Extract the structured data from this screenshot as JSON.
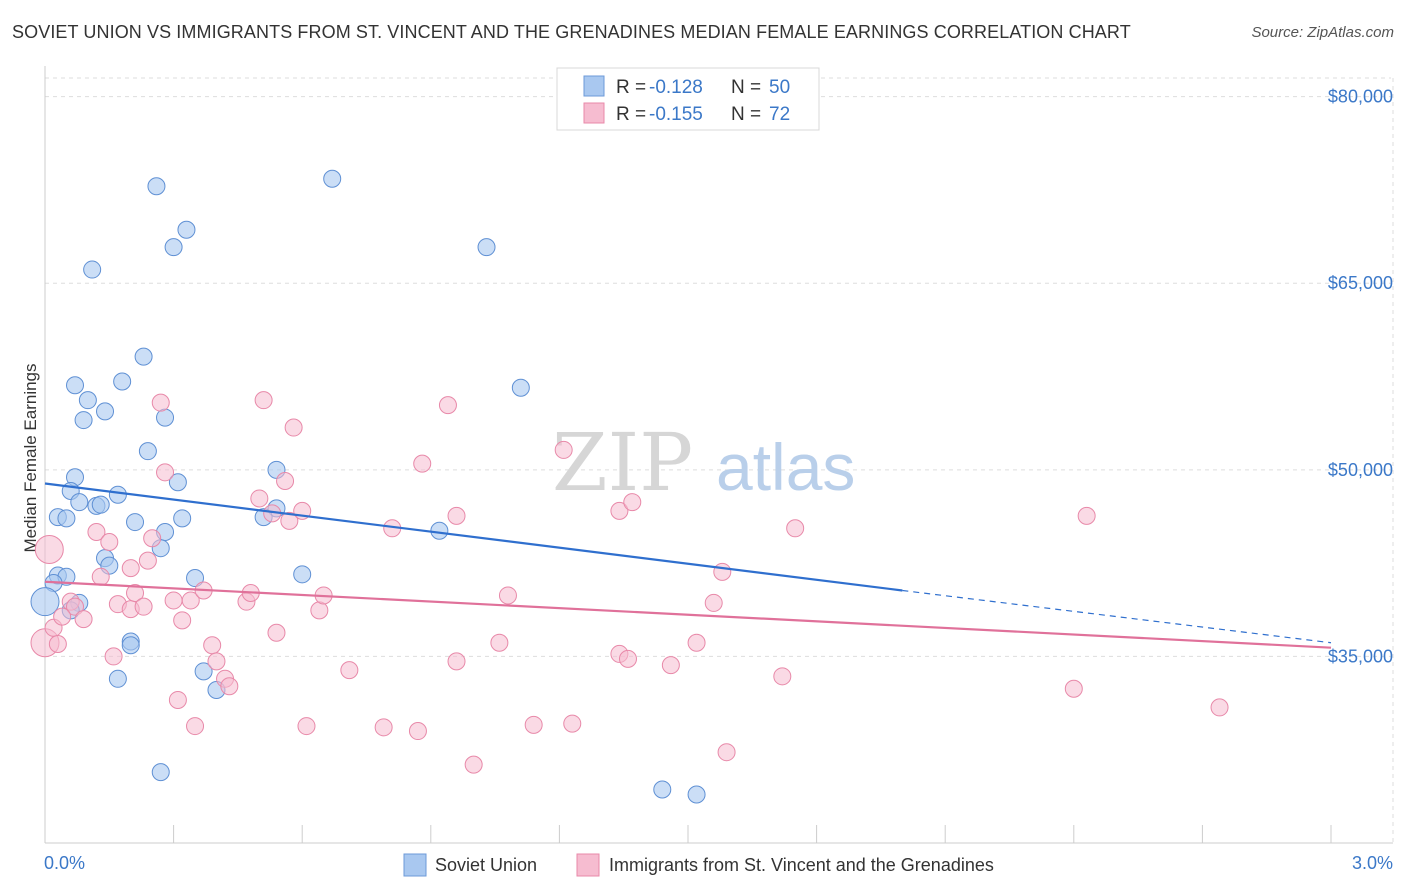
{
  "title": "SOVIET UNION VS IMMIGRANTS FROM ST. VINCENT AND THE GRENADINES MEDIAN FEMALE EARNINGS CORRELATION CHART",
  "source": "Source: ZipAtlas.com",
  "watermark": {
    "zip": "ZIP",
    "atlas": "atlas"
  },
  "colors": {
    "blue": "#3b78c8",
    "blue_fill": "#a9c8f0",
    "blue_line": "#2f6fce",
    "pink_fill": "#f6bcd0",
    "pink_stroke": "#e889a9",
    "pink_line": "#e0719a",
    "grid": "#dddddd"
  },
  "legend": {
    "rows": [
      {
        "r_label": "R =",
        "r_value": "-0.128",
        "n_label": "N =",
        "n_value": "50"
      },
      {
        "r_label": "R =",
        "r_value": "-0.155",
        "n_label": "N =",
        "n_value": "72"
      }
    ]
  },
  "bottom_legend": [
    "Soviet Union",
    "Immigrants from St. Vincent and the Grenadines"
  ],
  "chart_data": {
    "type": "scatter",
    "title": "SOVIET UNION VS IMMIGRANTS FROM ST. VINCENT AND THE GRENADINES MEDIAN FEMALE EARNINGS CORRELATION CHART",
    "xlabel": "",
    "ylabel": "Median Female Earnings",
    "xlim": [
      0,
      3.0
    ],
    "ylim": [
      20000,
      81500
    ],
    "x_tick_labels": [
      "0.0%",
      "3.0%"
    ],
    "y_ticks": [
      35000,
      50000,
      65000,
      80000
    ],
    "y_tick_labels": [
      "$35,000",
      "$50,000",
      "$65,000",
      "$80,000"
    ],
    "grid": true,
    "legend_position": "top-center",
    "series": [
      {
        "name": "Soviet Union",
        "color": "#a9c8f0",
        "r": -0.128,
        "n": 50,
        "trend": {
          "x": [
            0.0,
            2.0
          ],
          "y": [
            48900,
            40300
          ],
          "dashed_to": [
            3.0,
            36100
          ]
        },
        "points": [
          [
            0.26,
            72800
          ],
          [
            0.67,
            73400
          ],
          [
            0.33,
            69300
          ],
          [
            0.3,
            67900
          ],
          [
            1.03,
            67900
          ],
          [
            0.11,
            66100
          ],
          [
            0.23,
            59100
          ],
          [
            0.18,
            57100
          ],
          [
            0.07,
            56800
          ],
          [
            1.11,
            56600
          ],
          [
            0.1,
            55600
          ],
          [
            0.14,
            54700
          ],
          [
            0.28,
            54200
          ],
          [
            0.09,
            54000
          ],
          [
            0.24,
            51500
          ],
          [
            0.54,
            50000
          ],
          [
            0.07,
            49400
          ],
          [
            0.31,
            49000
          ],
          [
            0.06,
            48300
          ],
          [
            0.17,
            48000
          ],
          [
            0.08,
            47400
          ],
          [
            0.12,
            47100
          ],
          [
            0.13,
            47200
          ],
          [
            0.54,
            46900
          ],
          [
            0.03,
            46200
          ],
          [
            0.05,
            46100
          ],
          [
            0.32,
            46100
          ],
          [
            0.51,
            46200
          ],
          [
            0.21,
            45800
          ],
          [
            0.28,
            45000
          ],
          [
            0.92,
            45100
          ],
          [
            0.27,
            43700
          ],
          [
            0.14,
            42900
          ],
          [
            0.15,
            42300
          ],
          [
            0.6,
            41600
          ],
          [
            0.03,
            41500
          ],
          [
            0.05,
            41400
          ],
          [
            0.35,
            41300
          ],
          [
            0.02,
            40900
          ],
          [
            0.0,
            39400
          ],
          [
            0.08,
            39300
          ],
          [
            0.2,
            36200
          ],
          [
            0.2,
            35900
          ],
          [
            0.37,
            33800
          ],
          [
            0.17,
            33200
          ],
          [
            0.4,
            32300
          ],
          [
            0.27,
            25700
          ],
          [
            1.44,
            24300
          ],
          [
            1.52,
            23900
          ],
          [
            0.06,
            38700
          ]
        ]
      },
      {
        "name": "Immigrants from St. Vincent and the Grenadines",
        "color": "#f6bcd0",
        "r": -0.155,
        "n": 72,
        "trend": {
          "x": [
            0.0,
            3.0
          ],
          "y": [
            41000,
            35700
          ]
        },
        "points": [
          [
            0.0,
            36100
          ],
          [
            0.01,
            43600
          ],
          [
            0.02,
            37300
          ],
          [
            0.03,
            36000
          ],
          [
            0.06,
            39400
          ],
          [
            0.07,
            39000
          ],
          [
            0.09,
            38000
          ],
          [
            0.12,
            45000
          ],
          [
            0.13,
            41400
          ],
          [
            0.15,
            44200
          ],
          [
            0.16,
            35000
          ],
          [
            0.17,
            39200
          ],
          [
            0.2,
            38800
          ],
          [
            0.2,
            42100
          ],
          [
            0.21,
            40100
          ],
          [
            0.23,
            39000
          ],
          [
            0.24,
            42700
          ],
          [
            0.25,
            44500
          ],
          [
            0.27,
            55400
          ],
          [
            0.28,
            49800
          ],
          [
            0.3,
            39500
          ],
          [
            0.31,
            31500
          ],
          [
            0.32,
            37900
          ],
          [
            0.34,
            39500
          ],
          [
            0.35,
            29400
          ],
          [
            0.37,
            40300
          ],
          [
            0.39,
            35900
          ],
          [
            0.4,
            34600
          ],
          [
            0.42,
            33200
          ],
          [
            0.43,
            32600
          ],
          [
            0.47,
            39400
          ],
          [
            0.48,
            40100
          ],
          [
            0.5,
            47700
          ],
          [
            0.51,
            55600
          ],
          [
            0.53,
            46500
          ],
          [
            0.54,
            36900
          ],
          [
            0.56,
            49100
          ],
          [
            0.57,
            45900
          ],
          [
            0.58,
            53400
          ],
          [
            0.6,
            46700
          ],
          [
            0.61,
            29400
          ],
          [
            0.64,
            38700
          ],
          [
            0.65,
            39900
          ],
          [
            0.71,
            33900
          ],
          [
            0.79,
            29300
          ],
          [
            0.81,
            45300
          ],
          [
            0.87,
            29000
          ],
          [
            0.88,
            50500
          ],
          [
            0.94,
            55200
          ],
          [
            0.96,
            46300
          ],
          [
            0.96,
            34600
          ],
          [
            1.0,
            26300
          ],
          [
            1.06,
            36100
          ],
          [
            1.08,
            39900
          ],
          [
            1.14,
            29500
          ],
          [
            1.21,
            51600
          ],
          [
            1.23,
            29600
          ],
          [
            1.34,
            46700
          ],
          [
            1.37,
            47400
          ],
          [
            1.34,
            35200
          ],
          [
            1.36,
            34800
          ],
          [
            1.46,
            34300
          ],
          [
            1.52,
            36100
          ],
          [
            1.56,
            39300
          ],
          [
            1.58,
            41800
          ],
          [
            1.59,
            27300
          ],
          [
            1.72,
            33400
          ],
          [
            1.75,
            45300
          ],
          [
            2.43,
            46300
          ],
          [
            2.4,
            32400
          ],
          [
            2.74,
            30900
          ],
          [
            0.04,
            38200
          ]
        ]
      }
    ]
  }
}
